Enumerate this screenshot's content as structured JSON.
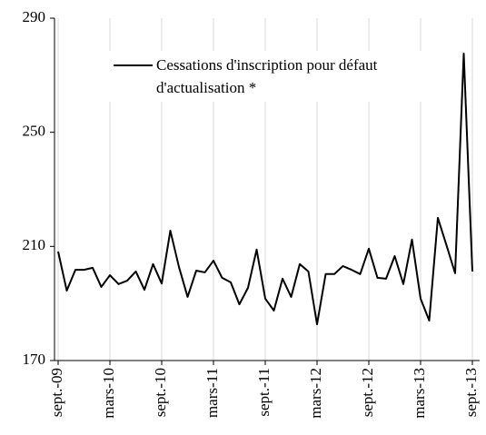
{
  "chart_data": {
    "type": "line",
    "categories": [
      "sept.-09",
      null,
      null,
      null,
      null,
      null,
      "mars-10",
      null,
      null,
      null,
      null,
      null,
      "sept.-10",
      null,
      null,
      null,
      null,
      null,
      "mars-11",
      null,
      null,
      null,
      null,
      null,
      "sept.-11",
      null,
      null,
      null,
      null,
      null,
      "mars-12",
      null,
      null,
      null,
      null,
      null,
      "sept.-12",
      null,
      null,
      null,
      null,
      null,
      "mars-13",
      null,
      null,
      null,
      null,
      null,
      "sept.-13"
    ],
    "series": [
      {
        "name": "Cessations d'inscription pour défaut d'actualisation *",
        "color": "#000000",
        "values": [
          208.2,
          194.5,
          201.8,
          201.8,
          202.5,
          195.8,
          199.9,
          196.8,
          198,
          201.2,
          194.8,
          203.8,
          197,
          215.5,
          202.8,
          192.3,
          201.5,
          200.9,
          205,
          199,
          197.4,
          189.7,
          195.5,
          208.9,
          191.7,
          187.5,
          198.7,
          192.3,
          203.8,
          201.2,
          182.7,
          200.3,
          200.3,
          203.1,
          201.8,
          200.3,
          209.2,
          199,
          198.7,
          206.6,
          196.8,
          212.4,
          191.7,
          184,
          220,
          210.4,
          200.6,
          277.6,
          201.2
        ]
      }
    ],
    "ylim": [
      170,
      290
    ],
    "yticks": [
      170,
      210,
      250,
      290
    ],
    "grid": true
  }
}
